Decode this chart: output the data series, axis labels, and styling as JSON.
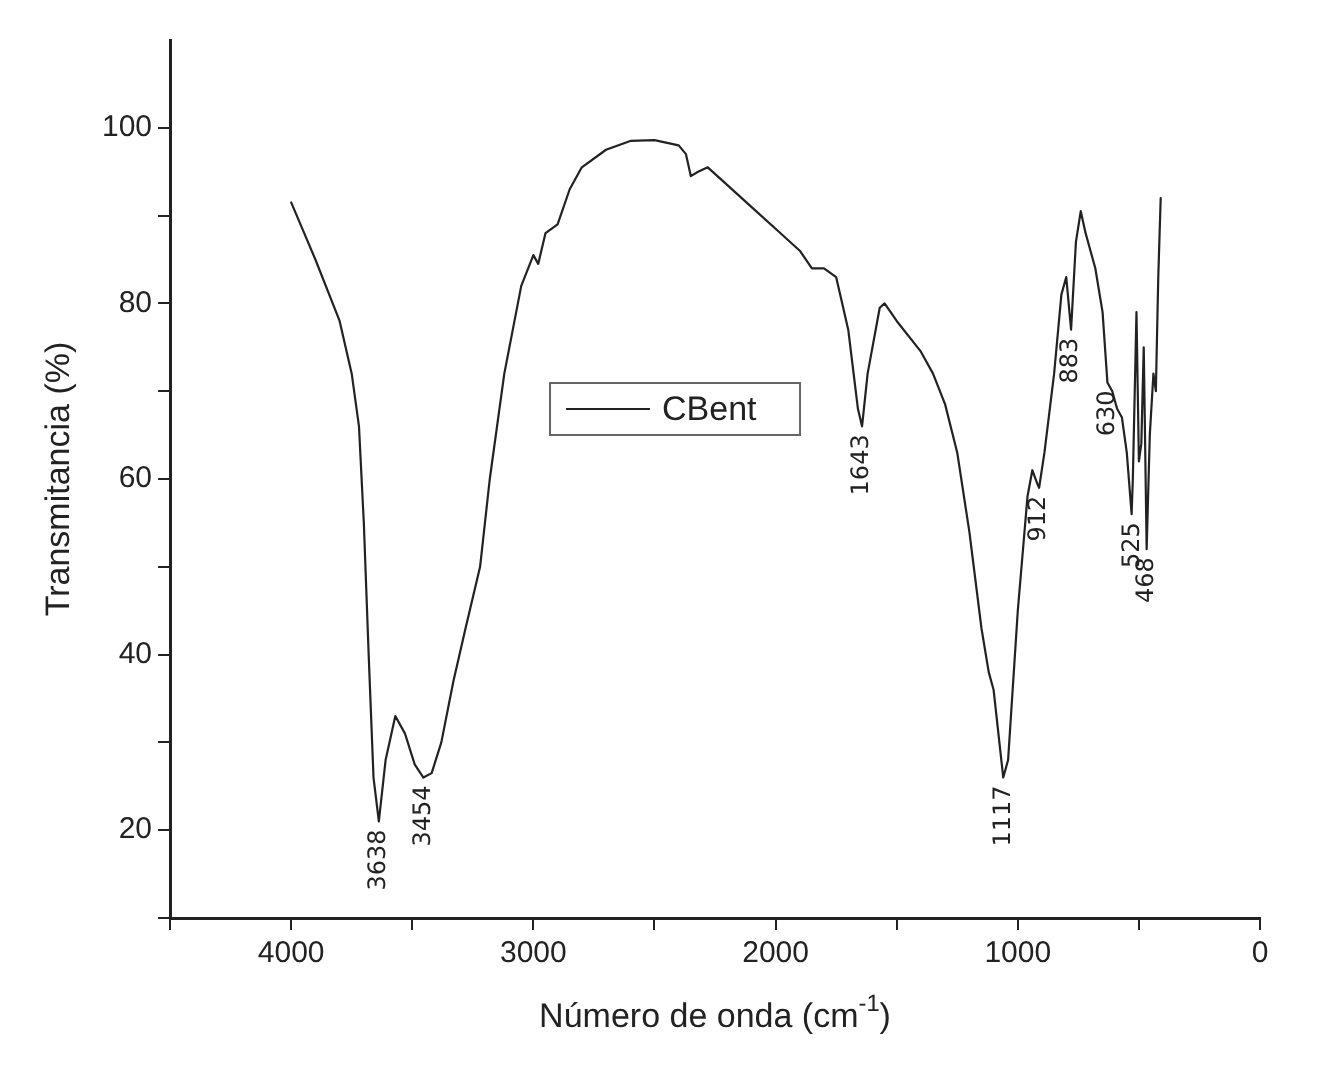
{
  "chart_data": {
    "type": "line",
    "xlabel": "Número de onda (cm$^{-1}$)",
    "ylabel": "Transmitancia (%)",
    "xlim": [
      4500,
      0
    ],
    "xticks": [
      {
        "value": 4500,
        "label": null
      },
      4000,
      {
        "value": 3500,
        "label": null
      },
      3000,
      {
        "value": 2500,
        "label": null
      },
      2000,
      {
        "value": 1500,
        "label": null
      },
      1000,
      {
        "value": 500,
        "label": null
      },
      0
    ],
    "ylim": [
      10,
      110
    ],
    "yticks": [
      {
        "value": 10,
        "label": null
      },
      20,
      {
        "value": 30,
        "label": null
      },
      40,
      {
        "value": 50,
        "label": null
      },
      60,
      {
        "value": 70,
        "label": null
      },
      80,
      {
        "value": 90,
        "label": null
      },
      100
    ],
    "grid": false,
    "legend": "center",
    "marker": "none",
    "line_style": "solid",
    "x": [
      4000,
      3900,
      3800,
      3750,
      3720,
      3700,
      3680,
      3660,
      3638,
      3610,
      3570,
      3530,
      3490,
      3454,
      3420,
      3380,
      3330,
      3280,
      3220,
      3180,
      3120,
      3050,
      3000,
      2980,
      2950,
      2900,
      2850,
      2800,
      2700,
      2600,
      2500,
      2400,
      2370,
      2350,
      2320,
      2280,
      2200,
      2100,
      2000,
      1900,
      1850,
      1800,
      1750,
      1700,
      1660,
      1643,
      1620,
      1570,
      1550,
      1500,
      1400,
      1350,
      1300,
      1250,
      1200,
      1150,
      1120,
      1100,
      1080,
      1060,
      1040,
      1000,
      960,
      940,
      920,
      912,
      890,
      850,
      820,
      800,
      790,
      780,
      760,
      740,
      720,
      700,
      680,
      650,
      630,
      610,
      590,
      570,
      550,
      530,
      525,
      510,
      500,
      490,
      480,
      468,
      455,
      440,
      430,
      420,
      410
    ],
    "series": [
      {
        "name": "CBent",
        "color": "#222222",
        "values": [
          91.5,
          85,
          78,
          72,
          66,
          55,
          40,
          26,
          21,
          28,
          33,
          31,
          27.5,
          26,
          26.5,
          30,
          37,
          43,
          50,
          60,
          72,
          82,
          85.5,
          84.5,
          88,
          89,
          93,
          95.5,
          97.5,
          98.5,
          98.6,
          98,
          97,
          94.5,
          95,
          95.5,
          93.5,
          91,
          88.5,
          86,
          84,
          84,
          83,
          77,
          68,
          66,
          72,
          79.5,
          80,
          78,
          74.5,
          72,
          68.5,
          63,
          54,
          43,
          38,
          36,
          31,
          26,
          28,
          45,
          58,
          61,
          59.5,
          59,
          63,
          72,
          81,
          83,
          80,
          77,
          87,
          90.5,
          88,
          86,
          84,
          79,
          71,
          70,
          68,
          67,
          63,
          56,
          60,
          79,
          62,
          64,
          75,
          52,
          65,
          72,
          70,
          83,
          92
        ]
      }
    ],
    "annotations": [
      {
        "text": "3638",
        "x": 3638,
        "y": 21
      },
      {
        "text": "3454",
        "x": 3454,
        "y": 26
      },
      {
        "text": "1643",
        "x": 1643,
        "y": 66
      },
      {
        "text": "1117",
        "x": 1060,
        "y": 26
      },
      {
        "text": "912",
        "x": 912,
        "y": 59
      },
      {
        "text": "883",
        "x": 780,
        "y": 77
      },
      {
        "text": "630",
        "x": 630,
        "y": 71
      },
      {
        "text": "525",
        "x": 525,
        "y": 56
      },
      {
        "text": "468",
        "x": 468,
        "y": 52
      }
    ]
  }
}
